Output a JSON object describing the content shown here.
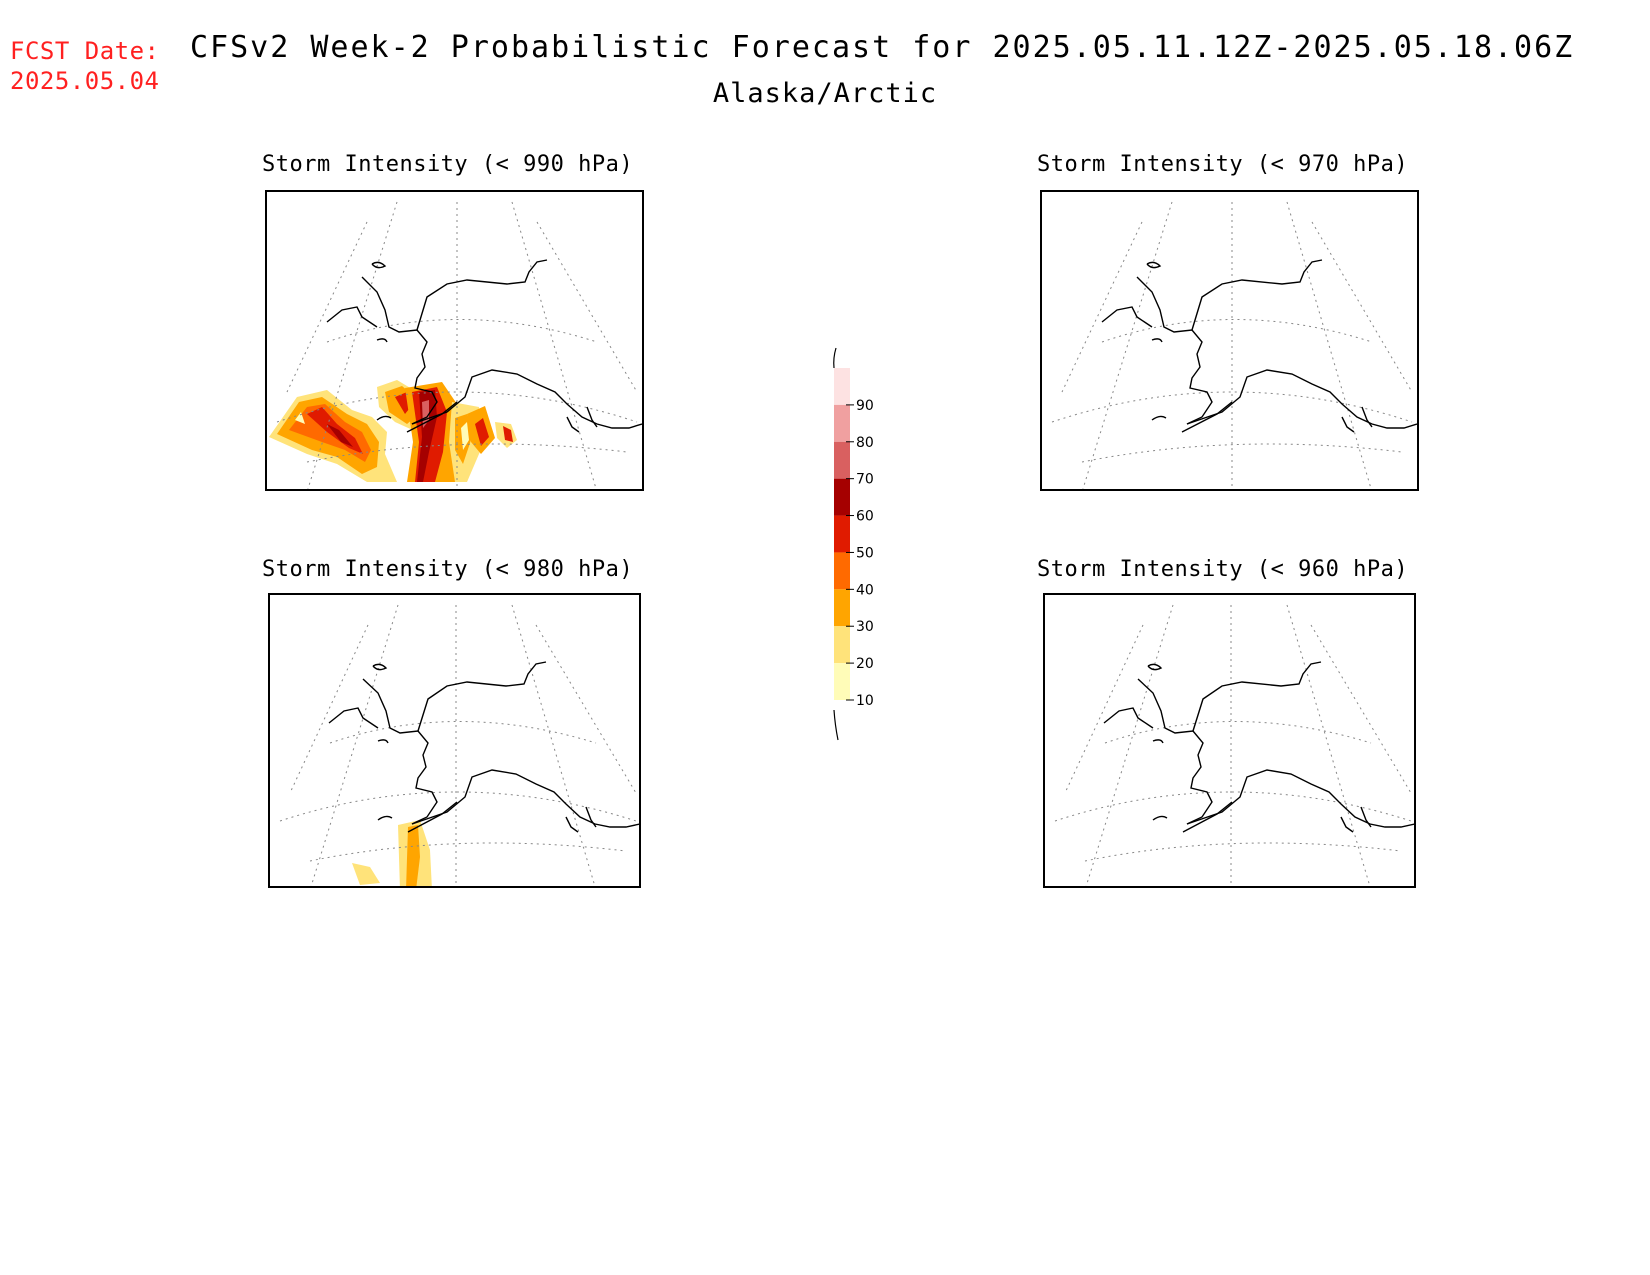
{
  "header": {
    "fcst_label": "FCST Date:",
    "fcst_date": "2025.05.04",
    "title": "CFSv2 Week-2 Probabilistic Forecast for 2025.05.11.12Z-2025.05.18.06Z",
    "subtitle": "Alaska/Arctic"
  },
  "panels": [
    {
      "id": "p990",
      "title": "Storm Intensity (< 990 hPa)"
    },
    {
      "id": "p970",
      "title": "Storm Intensity (< 970 hPa)"
    },
    {
      "id": "p980",
      "title": "Storm Intensity (< 980 hPa)"
    },
    {
      "id": "p960",
      "title": "Storm Intensity (< 960 hPa)"
    }
  ],
  "colorbar": {
    "levels": [
      "10",
      "20",
      "30",
      "40",
      "50",
      "60",
      "70",
      "80",
      "90"
    ],
    "colors": [
      "#fffcb8",
      "#ffe37a",
      "#ffa500",
      "#ff6a00",
      "#e01b00",
      "#a50000",
      "#d96060",
      "#f0a0a0",
      "#fde2e2"
    ]
  }
}
